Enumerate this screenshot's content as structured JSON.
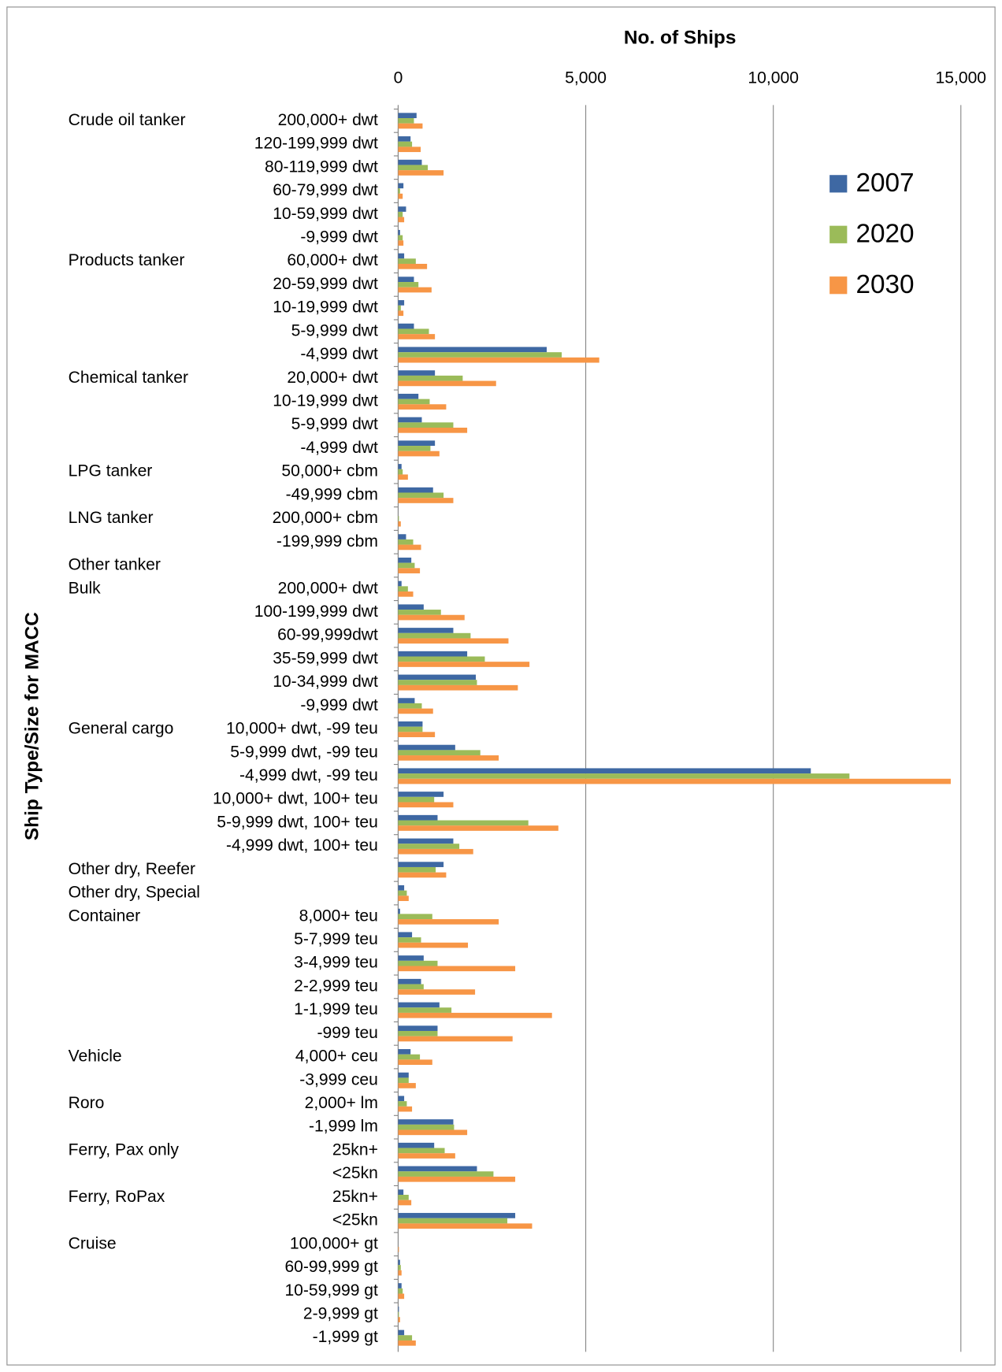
{
  "chart_data": {
    "type": "hbar",
    "title": "No. of Ships",
    "y_axis_label": "Ship Type/Size for MACC",
    "group_labels": [
      "Crude oil tanker",
      null,
      null,
      null,
      null,
      null,
      "Products tanker",
      null,
      null,
      null,
      null,
      "Chemical tanker",
      null,
      null,
      null,
      "LPG tanker",
      null,
      "LNG tanker",
      null,
      "Other tanker",
      "Bulk",
      null,
      null,
      null,
      null,
      null,
      "General cargo",
      null,
      null,
      null,
      null,
      null,
      "Other dry, Reefer",
      "Other dry, Special",
      "Container",
      null,
      null,
      null,
      null,
      null,
      "Vehicle",
      null,
      "Roro",
      null,
      "Ferry, Pax only",
      null,
      "Ferry, RoPax",
      null,
      "Cruise",
      null,
      null,
      null,
      null
    ],
    "categories": [
      "200,000+ dwt",
      "120-199,999 dwt",
      "80-119,999 dwt",
      "60-79,999 dwt",
      "10-59,999 dwt",
      "-9,999 dwt",
      "60,000+ dwt",
      "20-59,999 dwt",
      "10-19,999 dwt",
      "5-9,999 dwt",
      "-4,999 dwt",
      "20,000+ dwt",
      "10-19,999 dwt",
      "5-9,999 dwt",
      "-4,999 dwt",
      "50,000+ cbm",
      "-49,999 cbm",
      "200,000+ cbm",
      "-199,999 cbm",
      null,
      "200,000+ dwt",
      "100-199,999 dwt",
      "60-99,999dwt",
      "35-59,999 dwt",
      "10-34,999 dwt",
      "-9,999 dwt",
      "10,000+ dwt, -99 teu",
      "5-9,999 dwt, -99 teu",
      "-4,999 dwt, -99 teu",
      "10,000+ dwt, 100+ teu",
      "5-9,999 dwt, 100+ teu",
      "-4,999 dwt, 100+ teu",
      null,
      null,
      "8,000+ teu",
      "5-7,999 teu",
      "3-4,999 teu",
      "2-2,999 teu",
      "1-1,999 teu",
      "-999 teu",
      "4,000+ ceu",
      "-3,999 ceu",
      "2,000+ lm",
      "-1,999 lm",
      "25kn+",
      "<25kn",
      "25kn+",
      "<25kn",
      "100,000+ gt",
      "60-99,999 gt",
      "10-59,999 gt",
      "2-9,999 gt",
      "-1,999 gt"
    ],
    "series": [
      {
        "name": "2007",
        "color": "#3e68a3",
        "values": [
          490,
          330,
          630,
          140,
          210,
          50,
          160,
          420,
          160,
          420,
          3960,
          980,
          540,
          630,
          980,
          90,
          930,
          0,
          210,
          350,
          90,
          680,
          1470,
          1840,
          2070,
          440,
          650,
          1520,
          11000,
          1210,
          1050,
          1470,
          1210,
          160,
          50,
          370,
          680,
          610,
          1100,
          1050,
          330,
          280,
          160,
          1470,
          960,
          2100,
          140,
          3120,
          0,
          50,
          90,
          20,
          160
        ]
      },
      {
        "name": "2020",
        "color": "#9bbb59",
        "values": [
          420,
          370,
          790,
          50,
          120,
          120,
          470,
          540,
          70,
          820,
          4360,
          1720,
          840,
          1470,
          860,
          120,
          1210,
          20,
          400,
          440,
          260,
          1140,
          1930,
          2310,
          2100,
          630,
          650,
          2190,
          12030,
          960,
          3470,
          1630,
          1000,
          230,
          910,
          610,
          1050,
          680,
          1420,
          1050,
          580,
          280,
          230,
          1490,
          1240,
          2540,
          280,
          2910,
          0,
          70,
          120,
          20,
          370
        ]
      },
      {
        "name": "2030",
        "color": "#f79646",
        "values": [
          650,
          600,
          1210,
          120,
          160,
          140,
          770,
          890,
          140,
          980,
          5360,
          2610,
          1280,
          1840,
          1100,
          260,
          1470,
          70,
          610,
          580,
          400,
          1770,
          2940,
          3500,
          3190,
          930,
          980,
          2680,
          14730,
          1470,
          4270,
          2000,
          1280,
          280,
          2680,
          1860,
          3120,
          2050,
          4100,
          3050,
          910,
          470,
          370,
          1840,
          1520,
          3120,
          350,
          3570,
          20,
          90,
          160,
          50,
          470
        ]
      }
    ],
    "xlim": [
      0,
      15000
    ],
    "xticks": [
      0,
      {
        "value": 5000,
        "label": "5,000"
      },
      {
        "value": 10000,
        "label": "10,000"
      },
      {
        "value": 15000,
        "label": "15,000"
      }
    ],
    "grid": true,
    "legend": "upper right"
  }
}
